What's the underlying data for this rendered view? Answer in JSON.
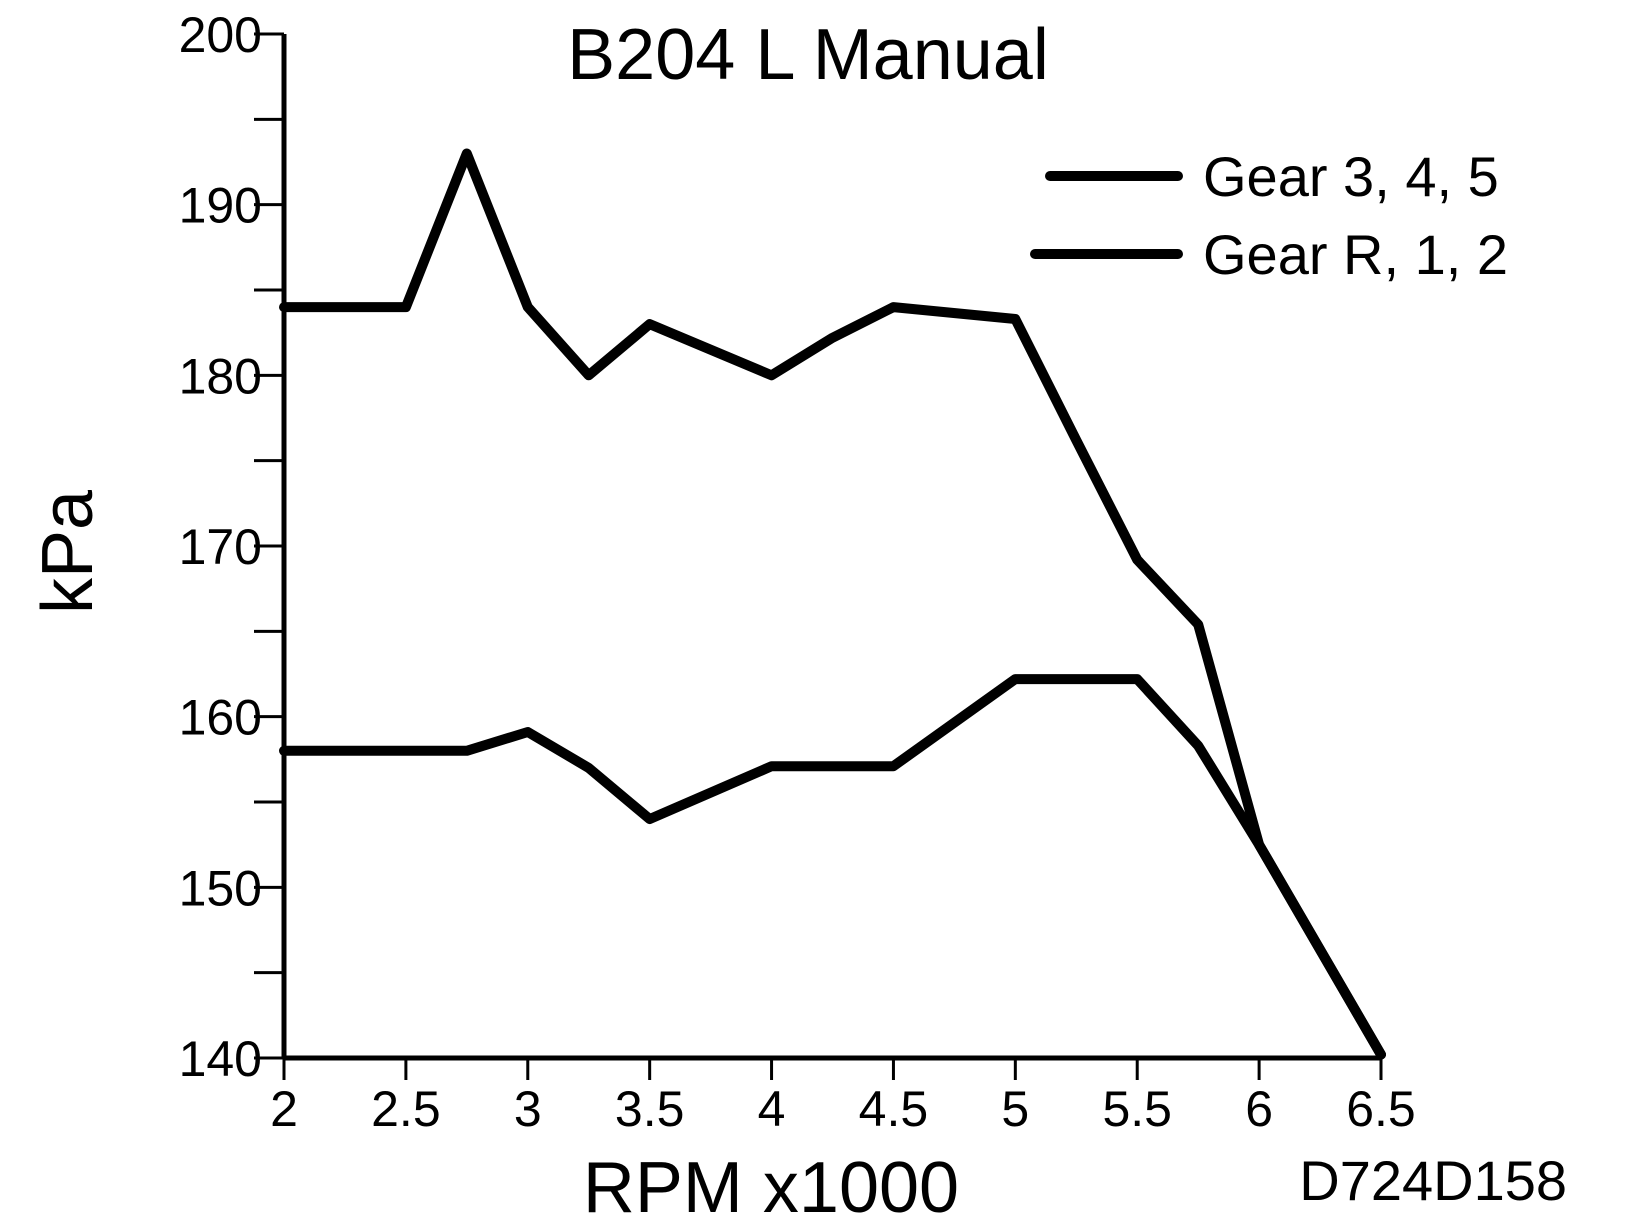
{
  "chart_data": {
    "type": "line",
    "title": "B204 L Manual",
    "xlabel": "RPM x1000",
    "ylabel": "kPa",
    "figure_id": "D724D158",
    "xlim": [
      2,
      6.5
    ],
    "ylim": [
      140,
      200
    ],
    "x_ticks": [
      "2",
      "2.5",
      "3",
      "3.5",
      "4",
      "4.5",
      "5",
      "5.5",
      "6",
      "6.5"
    ],
    "y_ticks": [
      "140",
      "150",
      "160",
      "170",
      "180",
      "190",
      "200"
    ],
    "legend_position": "top-right",
    "grid": false,
    "series": [
      {
        "name": "Gear 3, 4, 5",
        "color": "#000000",
        "points": [
          [
            2.0,
            184
          ],
          [
            2.5,
            184
          ],
          [
            2.75,
            193
          ],
          [
            3.0,
            184
          ],
          [
            3.25,
            180
          ],
          [
            3.5,
            183
          ],
          [
            4.0,
            180
          ],
          [
            4.25,
            182.2
          ],
          [
            4.5,
            184
          ],
          [
            5.0,
            183.3
          ],
          [
            5.25,
            176.2
          ],
          [
            5.5,
            169.2
          ],
          [
            5.75,
            165.4
          ],
          [
            6.0,
            152.5
          ],
          [
            6.5,
            140.2
          ]
        ]
      },
      {
        "name": "Gear R, 1, 2",
        "color": "#000000",
        "points": [
          [
            2.0,
            158
          ],
          [
            2.75,
            158
          ],
          [
            3.0,
            159.1
          ],
          [
            3.25,
            157
          ],
          [
            3.5,
            154
          ],
          [
            4.0,
            157.1
          ],
          [
            4.5,
            157.1
          ],
          [
            5.0,
            162.2
          ],
          [
            5.5,
            162.2
          ],
          [
            5.75,
            158.3
          ],
          [
            6.0,
            152.5
          ],
          [
            6.5,
            140.2
          ]
        ]
      }
    ]
  }
}
